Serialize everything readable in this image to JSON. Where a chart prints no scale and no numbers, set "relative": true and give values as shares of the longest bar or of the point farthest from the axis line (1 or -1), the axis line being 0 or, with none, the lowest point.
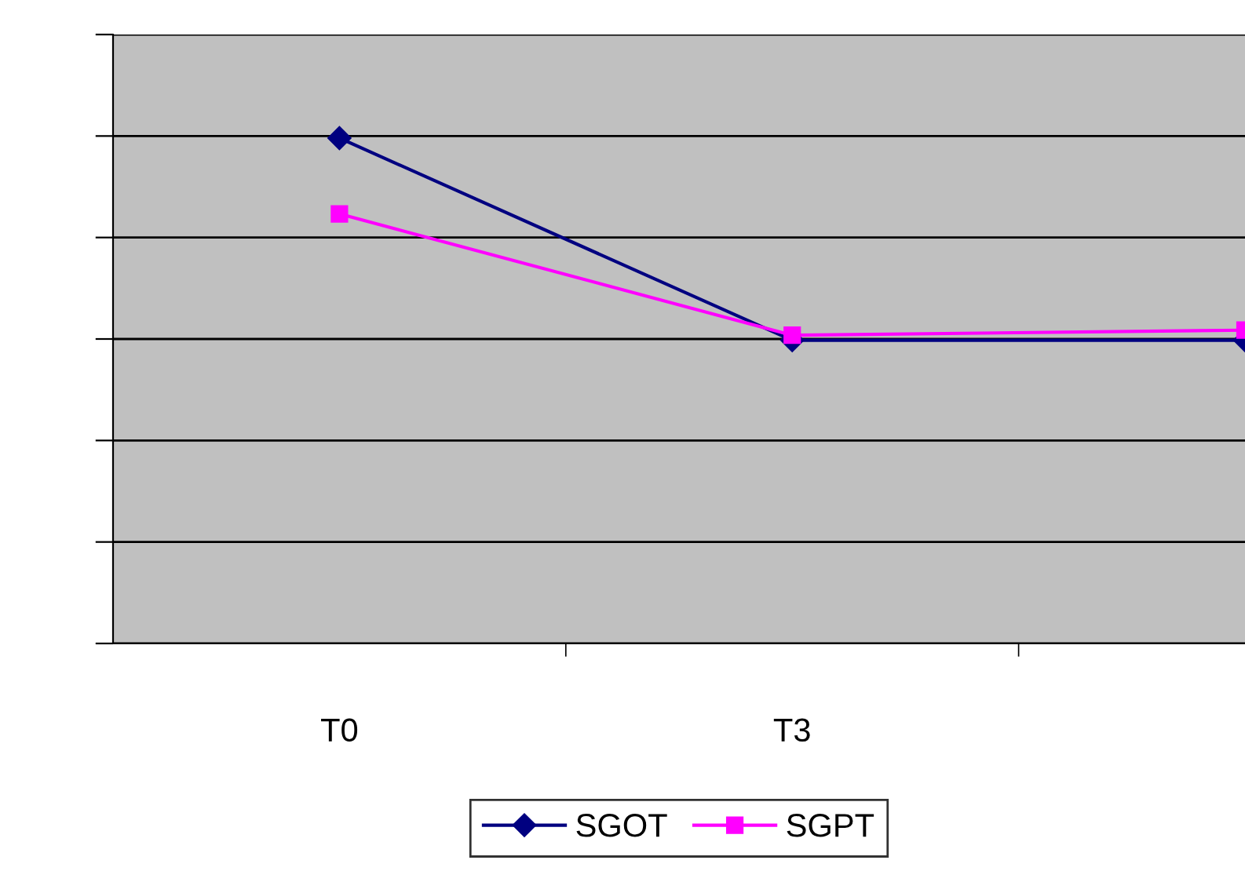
{
  "chart_data": {
    "type": "line",
    "relative": true,
    "categories": [
      "T0",
      "T3",
      null
    ],
    "series": [
      {
        "name": "SGOT",
        "color": "#000080",
        "marker": "diamond",
        "values": [
          1,
          0.6,
          0.6
        ]
      },
      {
        "name": "SGPT",
        "color": "#ff00ff",
        "marker": "square",
        "values": [
          0.85,
          0.61,
          0.62
        ]
      }
    ],
    "grid": "y",
    "legend": "bottom"
  }
}
